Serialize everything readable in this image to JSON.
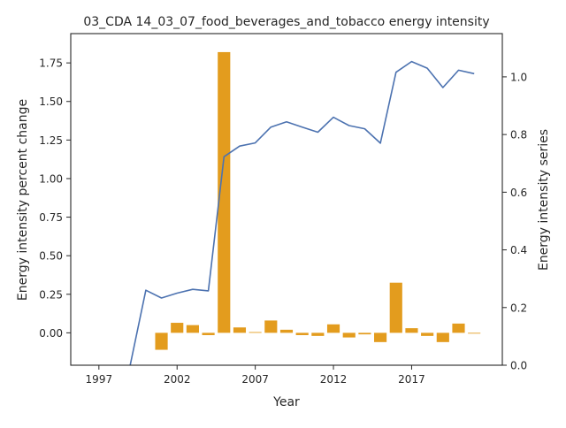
{
  "chart_data": {
    "type": "bar+line",
    "title": "03_CDA 14_03_07_food_beverages_and_tobacco energy intensity",
    "xlabel": "Year",
    "ylabel_left": "Energy intensity percent change",
    "ylabel_right": "Energy intensity series",
    "x_ticks": [
      1997,
      2002,
      2007,
      2012,
      2017
    ],
    "y_left_ticks": [
      "0.00",
      "0.25",
      "0.50",
      "0.75",
      "1.00",
      "1.25",
      "1.50",
      "1.75"
    ],
    "y_right_ticks": [
      "0.0",
      "0.2",
      "0.4",
      "0.6",
      "0.8",
      "1.0"
    ],
    "xlim": [
      1995.2,
      2022.8
    ],
    "ylim_left": [
      -0.21,
      1.94
    ],
    "ylim_right": [
      0.0,
      1.15
    ],
    "grid": false,
    "legend": "none",
    "series": [
      {
        "kind": "bar",
        "axis": "left",
        "color": "#e39c1e",
        "x": [
          2001,
          2002,
          2003,
          2004,
          2005,
          2006,
          2007,
          2008,
          2009,
          2010,
          2011,
          2012,
          2013,
          2014,
          2015,
          2016,
          2017,
          2018,
          2019,
          2020,
          2021
        ],
        "values": [
          -0.11,
          0.065,
          0.05,
          -0.015,
          1.82,
          0.035,
          0.005,
          0.08,
          0.02,
          -0.015,
          -0.02,
          0.055,
          -0.03,
          -0.01,
          -0.06,
          0.325,
          0.03,
          -0.02,
          -0.06,
          0.06,
          -0.005
        ]
      },
      {
        "kind": "line",
        "axis": "right",
        "color": "#4c72b0",
        "x": [
          1999,
          2000,
          2001,
          2002,
          2003,
          2004,
          2005,
          2006,
          2007,
          2008,
          2009,
          2010,
          2011,
          2012,
          2013,
          2014,
          2015,
          2016,
          2017,
          2018,
          2019,
          2020,
          2021
        ],
        "values": [
          0.0,
          0.26,
          0.233,
          0.25,
          0.263,
          0.258,
          0.723,
          0.76,
          0.771,
          0.826,
          0.844,
          0.826,
          0.808,
          0.86,
          0.831,
          0.82,
          0.77,
          1.016,
          1.053,
          1.03,
          0.963,
          1.023,
          1.011
        ]
      }
    ]
  }
}
